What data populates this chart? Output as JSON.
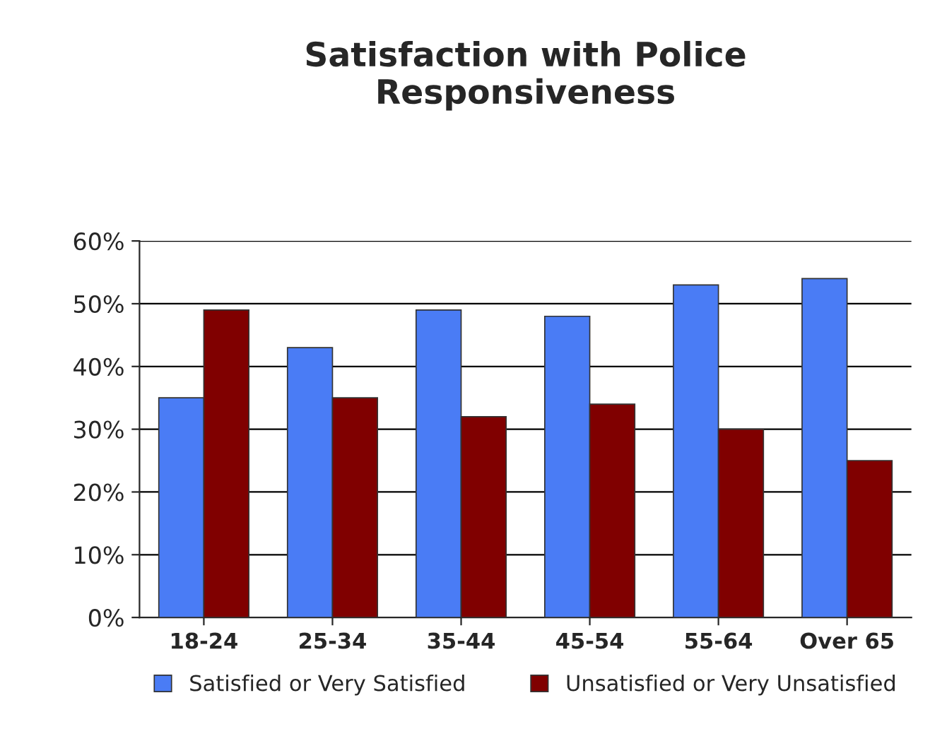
{
  "chart_data": {
    "type": "bar",
    "title": "Satisfaction with Police\nResponsiveness",
    "categories": [
      "18-24",
      "25-34",
      "35-44",
      "45-54",
      "55-64",
      "Over 65"
    ],
    "series": [
      {
        "name": "Satisfied or Very Satisfied",
        "color": "#4a7cf5",
        "values": [
          35,
          43,
          49,
          48,
          53,
          54
        ]
      },
      {
        "name": "Unsatisfied or Very Unsatisfied",
        "color": "#800000",
        "values": [
          49,
          35,
          32,
          34,
          30,
          25
        ]
      }
    ],
    "ylim": [
      0,
      60
    ],
    "yticks": [
      {
        "value": 0,
        "label": "0%"
      },
      {
        "value": 10,
        "label": "10%"
      },
      {
        "value": 20,
        "label": "20%"
      },
      {
        "value": 30,
        "label": "30%"
      },
      {
        "value": 40,
        "label": "40%"
      },
      {
        "value": 50,
        "label": "50%"
      },
      {
        "value": 60,
        "label": "60%"
      }
    ],
    "grid": "y",
    "legend": "bottom"
  }
}
